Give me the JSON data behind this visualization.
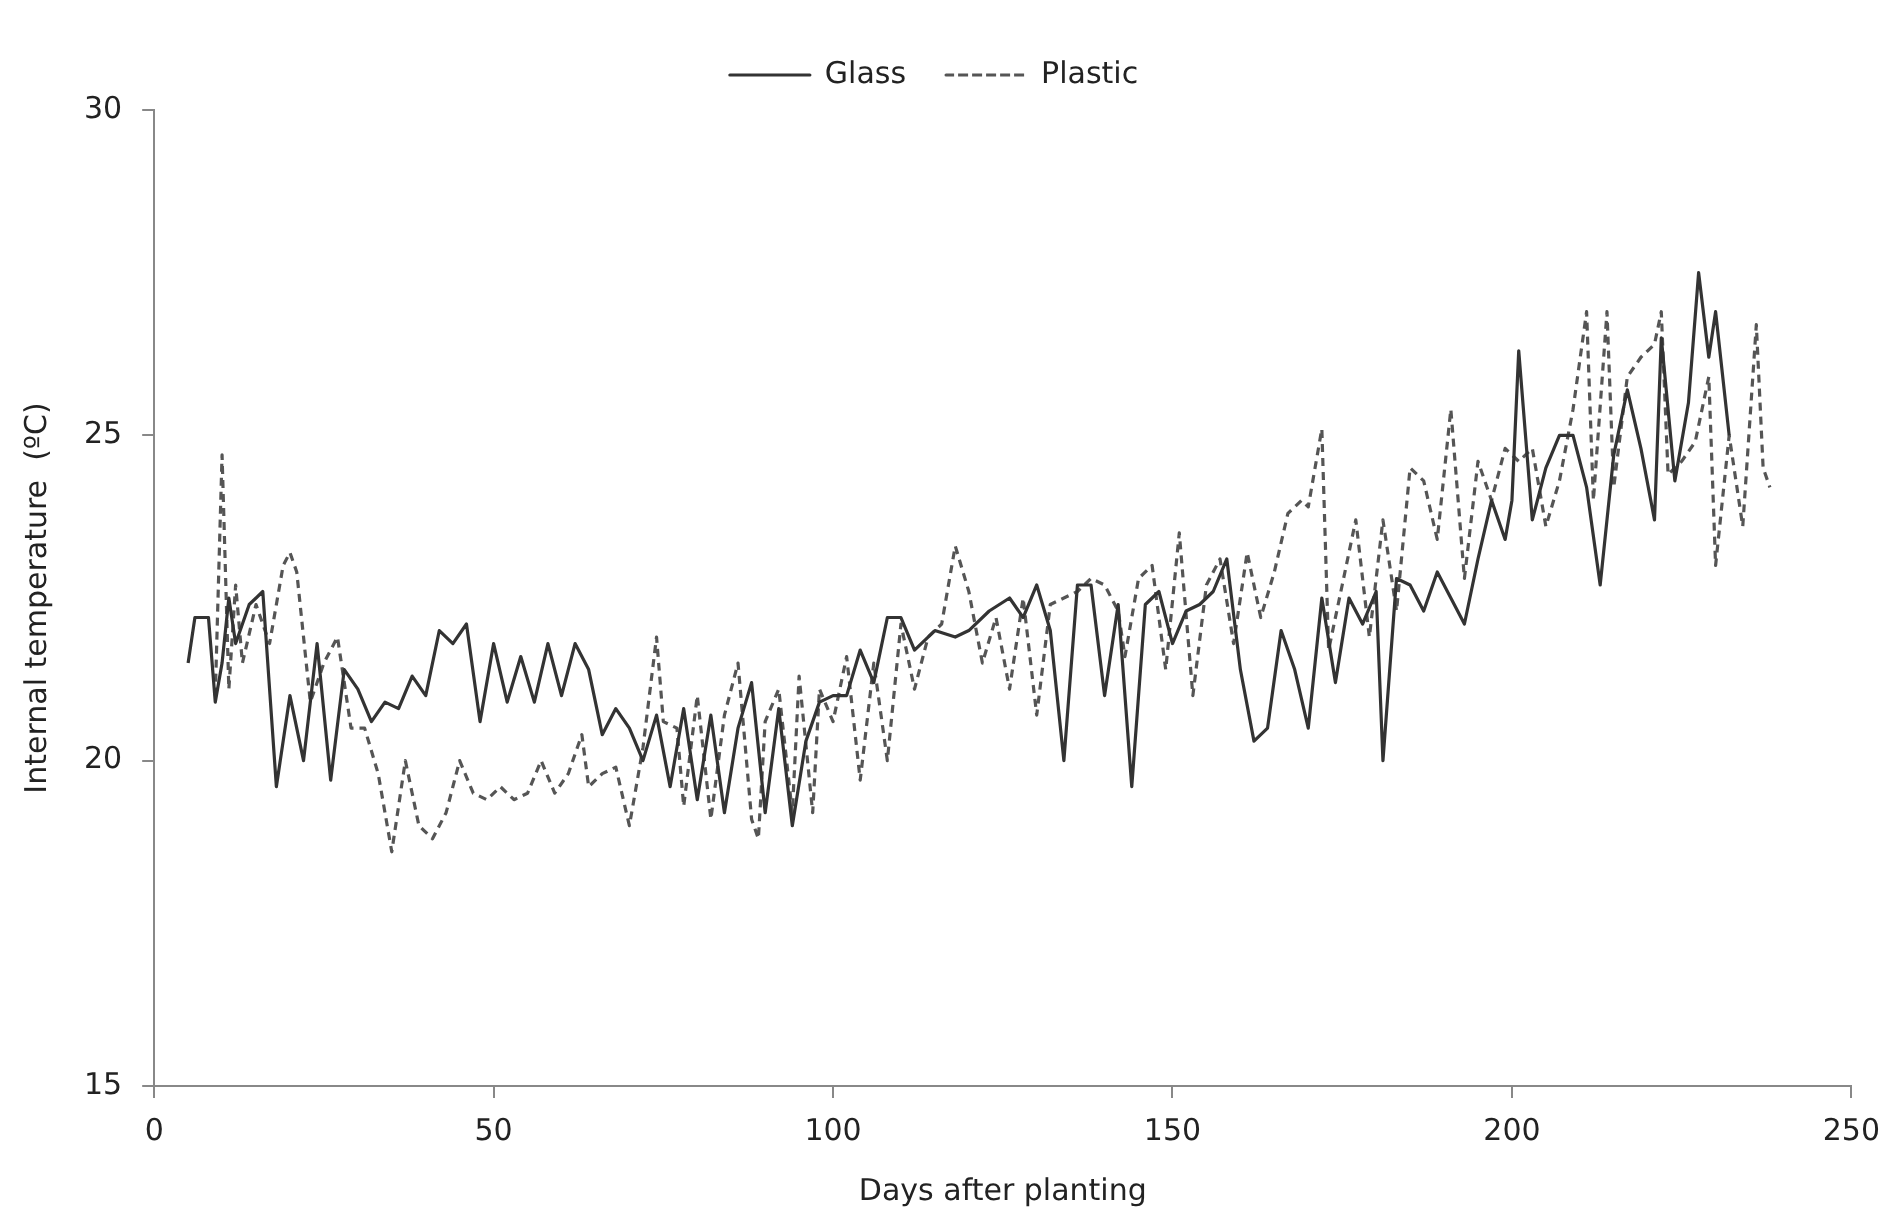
{
  "chart_data": {
    "type": "line",
    "xlabel": "Days after planting",
    "ylabel": "Internal temperature  (ºC)",
    "xlim": [
      0,
      250
    ],
    "xticks": [
      0,
      50,
      100,
      150,
      200,
      250
    ],
    "ylim": [
      15,
      30
    ],
    "yticks": [
      15,
      20,
      25,
      30
    ],
    "grid": false,
    "legend": "top",
    "marker": "none",
    "series": [
      {
        "name": "Glass",
        "color": "#333333",
        "line_style": "solid",
        "x": [
          5,
          6,
          8,
          9,
          10,
          11,
          12,
          14,
          16,
          18,
          20,
          22,
          24,
          26,
          28,
          30,
          32,
          34,
          36,
          38,
          40,
          42,
          44,
          46,
          48,
          50,
          52,
          54,
          56,
          58,
          60,
          62,
          64,
          66,
          68,
          70,
          72,
          74,
          76,
          78,
          80,
          82,
          84,
          86,
          88,
          90,
          92,
          94,
          96,
          98,
          100,
          102,
          104,
          106,
          108,
          110,
          112,
          115,
          118,
          120,
          123,
          126,
          128,
          130,
          132,
          134,
          136,
          138,
          140,
          142,
          144,
          146,
          148,
          150,
          152,
          154,
          156,
          158,
          160,
          162,
          164,
          166,
          168,
          170,
          172,
          174,
          176,
          178,
          180,
          181,
          183,
          185,
          187,
          189,
          191,
          193,
          195,
          197,
          199,
          200,
          201,
          203,
          205,
          207,
          209,
          211,
          213,
          215,
          217,
          219,
          221,
          222,
          224,
          226,
          227.5,
          229,
          230,
          232
        ],
        "values": [
          21.5,
          22.2,
          22.2,
          20.9,
          21.5,
          22.5,
          21.8,
          22.4,
          22.6,
          19.6,
          21.0,
          20.0,
          21.8,
          19.7,
          21.4,
          21.1,
          20.6,
          20.9,
          20.8,
          21.3,
          21.0,
          22.0,
          21.8,
          22.1,
          20.6,
          21.8,
          20.9,
          21.6,
          20.9,
          21.8,
          21.0,
          21.8,
          21.4,
          20.4,
          20.8,
          20.5,
          20.0,
          20.7,
          19.6,
          20.8,
          19.4,
          20.7,
          19.2,
          20.5,
          21.2,
          19.2,
          20.8,
          19.0,
          20.3,
          20.9,
          21.0,
          21.0,
          21.7,
          21.2,
          22.2,
          22.2,
          21.7,
          22.0,
          21.9,
          22.0,
          22.3,
          22.5,
          22.2,
          22.7,
          22.0,
          20.0,
          22.7,
          22.7,
          21.0,
          22.4,
          19.6,
          22.4,
          22.6,
          21.8,
          22.3,
          22.4,
          22.6,
          23.1,
          21.4,
          20.3,
          20.5,
          22.0,
          21.4,
          20.5,
          22.5,
          21.2,
          22.5,
          22.1,
          22.6,
          20.0,
          22.8,
          22.7,
          22.3,
          22.9,
          22.5,
          22.1,
          23.1,
          24.0,
          23.4,
          24.0,
          26.3,
          23.7,
          24.5,
          25.0,
          25.0,
          24.2,
          22.7,
          24.7,
          25.7,
          24.8,
          23.7,
          26.5,
          24.3,
          25.5,
          27.5,
          26.2,
          26.9,
          25.0
        ]
      },
      {
        "name": "Plastic",
        "color": "#555555",
        "line_style": "dashed",
        "x": [
          9,
          10,
          11,
          12,
          13,
          15,
          17,
          19,
          20,
          21,
          23,
          25,
          27,
          29,
          31,
          33,
          35,
          37,
          39,
          41,
          43,
          45,
          47,
          49,
          51,
          53,
          55,
          57,
          59,
          61,
          63,
          64,
          66,
          68,
          70,
          72,
          74,
          75,
          77,
          78,
          80,
          82,
          84,
          86,
          88,
          89,
          90,
          92,
          94,
          95,
          97,
          98,
          100,
          102,
          104,
          106,
          108,
          110,
          112,
          114,
          116,
          118,
          120,
          122,
          124,
          126,
          128,
          130,
          132,
          134,
          136,
          138,
          140,
          142,
          143,
          145,
          147,
          149,
          151,
          153,
          155,
          157,
          159,
          161,
          163,
          165,
          167,
          169,
          170,
          172,
          173,
          175,
          177,
          179,
          181,
          183,
          185,
          187,
          189,
          191,
          193,
          195,
          197,
          199,
          201,
          203,
          205,
          207,
          209,
          211,
          212,
          214,
          215,
          217,
          219,
          221,
          222,
          223,
          225,
          227,
          229,
          230,
          232,
          234,
          236,
          237,
          238
        ],
        "values": [
          21.0,
          24.7,
          21.1,
          22.7,
          21.5,
          22.4,
          21.8,
          23.0,
          23.2,
          22.9,
          20.9,
          21.5,
          21.9,
          20.5,
          20.5,
          19.8,
          18.6,
          20.0,
          19.0,
          18.8,
          19.2,
          20.0,
          19.5,
          19.4,
          19.6,
          19.4,
          19.5,
          20.0,
          19.5,
          19.8,
          20.4,
          19.6,
          19.8,
          19.9,
          19.0,
          20.2,
          21.9,
          20.6,
          20.5,
          19.3,
          21.0,
          19.1,
          20.7,
          21.5,
          19.1,
          18.8,
          20.6,
          21.1,
          19.2,
          21.3,
          19.2,
          21.1,
          20.6,
          21.6,
          19.7,
          21.5,
          20.0,
          22.1,
          21.1,
          21.9,
          22.1,
          23.3,
          22.6,
          21.5,
          22.2,
          21.1,
          22.5,
          20.7,
          22.4,
          22.5,
          22.6,
          22.8,
          22.7,
          22.3,
          21.6,
          22.8,
          23.0,
          21.4,
          23.5,
          21.0,
          22.7,
          23.1,
          21.8,
          23.2,
          22.2,
          22.9,
          23.8,
          24.0,
          23.9,
          25.1,
          21.7,
          22.7,
          23.7,
          21.9,
          23.7,
          22.3,
          24.5,
          24.3,
          23.4,
          25.4,
          22.8,
          24.6,
          24.0,
          24.8,
          24.6,
          24.8,
          23.6,
          24.3,
          25.4,
          26.9,
          24.0,
          26.9,
          24.2,
          25.9,
          26.2,
          26.4,
          26.9,
          24.4,
          24.6,
          24.9,
          25.9,
          23.0,
          25.0,
          23.6,
          26.7,
          24.5,
          24.2
        ]
      }
    ]
  }
}
